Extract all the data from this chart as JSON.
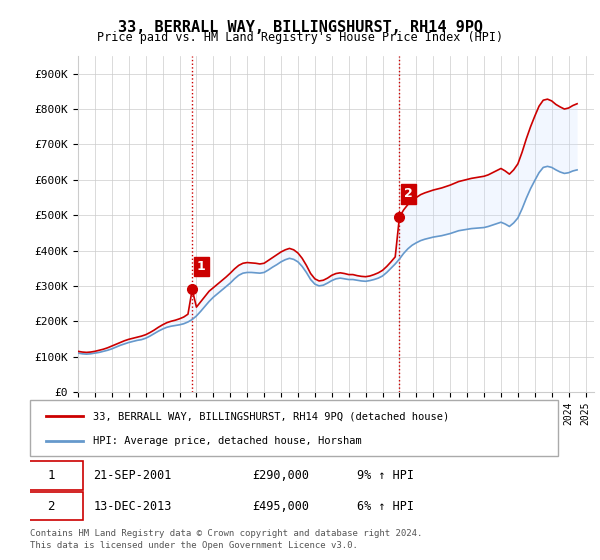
{
  "title": "33, BERRALL WAY, BILLINGSHURST, RH14 9PQ",
  "subtitle": "Price paid vs. HM Land Registry's House Price Index (HPI)",
  "ylabel_ticks": [
    "£0",
    "£100K",
    "£200K",
    "£300K",
    "£400K",
    "£500K",
    "£600K",
    "£700K",
    "£800K",
    "£900K"
  ],
  "ytick_values": [
    0,
    100000,
    200000,
    300000,
    400000,
    500000,
    600000,
    700000,
    800000,
    900000
  ],
  "ylim": [
    0,
    950000
  ],
  "xlim_start": 1995.0,
  "xlim_end": 2025.5,
  "line1_color": "#cc0000",
  "line2_color": "#6699cc",
  "fill_color": "#cce0ff",
  "marker1_color": "#cc0000",
  "vline_color": "#cc0000",
  "vline_style": "dotted",
  "legend_label1": "33, BERRALL WAY, BILLINGSHURST, RH14 9PQ (detached house)",
  "legend_label2": "HPI: Average price, detached house, Horsham",
  "sale1_label": "1",
  "sale1_date": "21-SEP-2001",
  "sale1_price": "£290,000",
  "sale1_hpi": "9% ↑ HPI",
  "sale1_year": 2001.72,
  "sale1_value": 290000,
  "sale2_label": "2",
  "sale2_date": "13-DEC-2013",
  "sale2_price": "£495,000",
  "sale2_hpi": "6% ↑ HPI",
  "sale2_year": 2013.95,
  "sale2_value": 495000,
  "footnote1": "Contains HM Land Registry data © Crown copyright and database right 2024.",
  "footnote2": "This data is licensed under the Open Government Licence v3.0.",
  "background_color": "#ffffff",
  "grid_color": "#cccccc",
  "hpi_data": {
    "years": [
      1995.0,
      1995.25,
      1995.5,
      1995.75,
      1996.0,
      1996.25,
      1996.5,
      1996.75,
      1997.0,
      1997.25,
      1997.5,
      1997.75,
      1998.0,
      1998.25,
      1998.5,
      1998.75,
      1999.0,
      1999.25,
      1999.5,
      1999.75,
      2000.0,
      2000.25,
      2000.5,
      2000.75,
      2001.0,
      2001.25,
      2001.5,
      2001.75,
      2002.0,
      2002.25,
      2002.5,
      2002.75,
      2003.0,
      2003.25,
      2003.5,
      2003.75,
      2004.0,
      2004.25,
      2004.5,
      2004.75,
      2005.0,
      2005.25,
      2005.5,
      2005.75,
      2006.0,
      2006.25,
      2006.5,
      2006.75,
      2007.0,
      2007.25,
      2007.5,
      2007.75,
      2008.0,
      2008.25,
      2008.5,
      2008.75,
      2009.0,
      2009.25,
      2009.5,
      2009.75,
      2010.0,
      2010.25,
      2010.5,
      2010.75,
      2011.0,
      2011.25,
      2011.5,
      2011.75,
      2012.0,
      2012.25,
      2012.5,
      2012.75,
      2013.0,
      2013.25,
      2013.5,
      2013.75,
      2014.0,
      2014.25,
      2014.5,
      2014.75,
      2015.0,
      2015.25,
      2015.5,
      2015.75,
      2016.0,
      2016.25,
      2016.5,
      2016.75,
      2017.0,
      2017.25,
      2017.5,
      2017.75,
      2018.0,
      2018.25,
      2018.5,
      2018.75,
      2019.0,
      2019.25,
      2019.5,
      2019.75,
      2020.0,
      2020.25,
      2020.5,
      2020.75,
      2021.0,
      2021.25,
      2021.5,
      2021.75,
      2022.0,
      2022.25,
      2022.5,
      2022.75,
      2023.0,
      2023.25,
      2023.5,
      2023.75,
      2024.0,
      2024.25,
      2024.5
    ],
    "values": [
      110000,
      108000,
      107000,
      108000,
      110000,
      112000,
      115000,
      118000,
      122000,
      127000,
      132000,
      136000,
      140000,
      143000,
      146000,
      148000,
      152000,
      158000,
      165000,
      172000,
      178000,
      183000,
      186000,
      188000,
      190000,
      193000,
      198000,
      205000,
      215000,
      228000,
      242000,
      256000,
      268000,
      278000,
      288000,
      298000,
      308000,
      320000,
      330000,
      336000,
      338000,
      338000,
      337000,
      336000,
      338000,
      345000,
      353000,
      360000,
      368000,
      374000,
      378000,
      375000,
      368000,
      355000,
      338000,
      318000,
      305000,
      300000,
      302000,
      308000,
      315000,
      320000,
      322000,
      320000,
      318000,
      318000,
      316000,
      314000,
      313000,
      315000,
      318000,
      322000,
      328000,
      338000,
      350000,
      362000,
      376000,
      392000,
      405000,
      415000,
      422000,
      428000,
      432000,
      435000,
      438000,
      440000,
      442000,
      445000,
      448000,
      452000,
      456000,
      458000,
      460000,
      462000,
      463000,
      464000,
      465000,
      468000,
      472000,
      476000,
      480000,
      475000,
      468000,
      478000,
      492000,
      518000,
      548000,
      575000,
      598000,
      620000,
      635000,
      638000,
      635000,
      628000,
      622000,
      618000,
      620000,
      625000,
      628000
    ]
  },
  "price_data": {
    "years": [
      1995.0,
      1995.25,
      1995.5,
      1995.75,
      1996.0,
      1996.25,
      1996.5,
      1996.75,
      1997.0,
      1997.25,
      1997.5,
      1997.75,
      1998.0,
      1998.25,
      1998.5,
      1998.75,
      1999.0,
      1999.25,
      1999.5,
      1999.75,
      2000.0,
      2000.25,
      2000.5,
      2000.75,
      2001.0,
      2001.25,
      2001.5,
      2001.75,
      2002.0,
      2002.25,
      2002.5,
      2002.75,
      2003.0,
      2003.25,
      2003.5,
      2003.75,
      2004.0,
      2004.25,
      2004.5,
      2004.75,
      2005.0,
      2005.25,
      2005.5,
      2005.75,
      2006.0,
      2006.25,
      2006.5,
      2006.75,
      2007.0,
      2007.25,
      2007.5,
      2007.75,
      2008.0,
      2008.25,
      2008.5,
      2008.75,
      2009.0,
      2009.25,
      2009.5,
      2009.75,
      2010.0,
      2010.25,
      2010.5,
      2010.75,
      2011.0,
      2011.25,
      2011.5,
      2011.75,
      2012.0,
      2012.25,
      2012.5,
      2012.75,
      2013.0,
      2013.25,
      2013.5,
      2013.75,
      2014.0,
      2014.25,
      2014.5,
      2014.75,
      2015.0,
      2015.25,
      2015.5,
      2015.75,
      2016.0,
      2016.25,
      2016.5,
      2016.75,
      2017.0,
      2017.25,
      2017.5,
      2017.75,
      2018.0,
      2018.25,
      2018.5,
      2018.75,
      2019.0,
      2019.25,
      2019.5,
      2019.75,
      2020.0,
      2020.25,
      2020.5,
      2020.75,
      2021.0,
      2021.25,
      2021.5,
      2021.75,
      2022.0,
      2022.25,
      2022.5,
      2022.75,
      2023.0,
      2023.25,
      2023.5,
      2023.75,
      2024.0,
      2024.25,
      2024.5
    ],
    "values": [
      115000,
      113000,
      112000,
      113000,
      115000,
      118000,
      121000,
      125000,
      130000,
      135000,
      140000,
      145000,
      149000,
      152000,
      155000,
      158000,
      162000,
      168000,
      175000,
      183000,
      190000,
      196000,
      200000,
      203000,
      207000,
      212000,
      220000,
      290000,
      240000,
      255000,
      270000,
      285000,
      295000,
      305000,
      315000,
      325000,
      336000,
      348000,
      358000,
      364000,
      366000,
      365000,
      364000,
      362000,
      364000,
      372000,
      380000,
      388000,
      396000,
      402000,
      406000,
      402000,
      393000,
      378000,
      358000,
      335000,
      320000,
      314000,
      316000,
      322000,
      330000,
      335000,
      337000,
      335000,
      332000,
      332000,
      329000,
      327000,
      326000,
      328000,
      332000,
      337000,
      344000,
      355000,
      368000,
      382000,
      495000,
      515000,
      530000,
      542000,
      550000,
      558000,
      563000,
      567000,
      571000,
      574000,
      577000,
      581000,
      585000,
      590000,
      595000,
      598000,
      601000,
      604000,
      606000,
      608000,
      610000,
      614000,
      620000,
      626000,
      632000,
      625000,
      616000,
      628000,
      645000,
      678000,
      716000,
      750000,
      780000,
      808000,
      825000,
      828000,
      823000,
      813000,
      806000,
      800000,
      803000,
      810000,
      815000
    ]
  }
}
